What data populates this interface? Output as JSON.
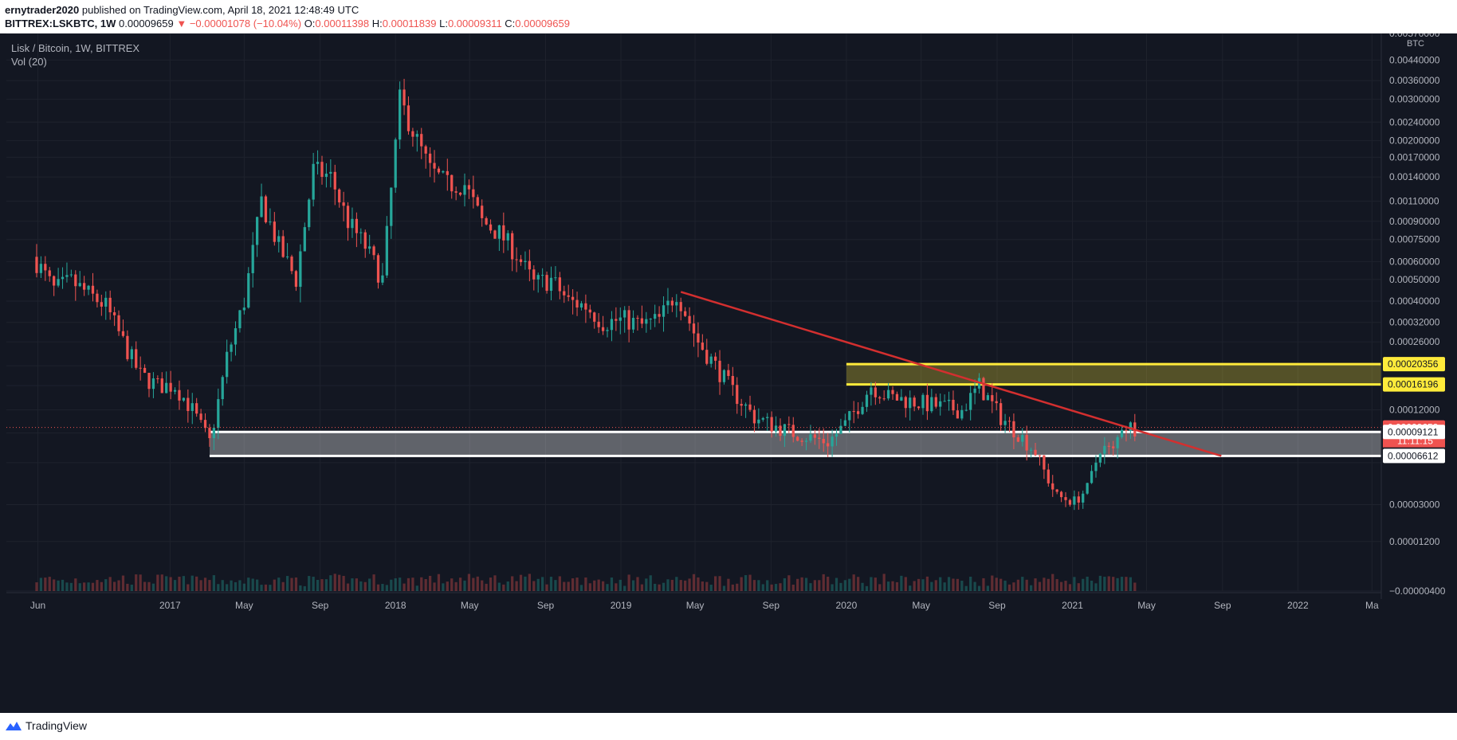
{
  "header": {
    "author": "ernytrader2020",
    "published_text": "published on TradingView.com, April 18, 2021 12:48:49 UTC",
    "symbol": "BITTREX:LSKBTC, 1W",
    "price": "0.00009659",
    "change": "−0.00001078 (−10.04%)",
    "o_label": "O:",
    "o_value": "0.00011398",
    "h_label": "H:",
    "h_value": "0.00011839",
    "l_label": "L:",
    "l_value": "0.00009311",
    "c_label": "C:",
    "c_value": "0.00009659"
  },
  "legend": {
    "title": "Lisk / Bitcoin, 1W, BITTREX",
    "vol": "Vol (20)"
  },
  "footer": {
    "brand": "TradingView"
  },
  "colors": {
    "background": "#131722",
    "up": "#26a69a",
    "down": "#ef5350",
    "trendline": "#d32f2f",
    "resistance_zone": "#ffeb3b",
    "support_zone": "#ffffff"
  },
  "chart_data": {
    "type": "candlestick",
    "scale": "log",
    "currency": "BTC",
    "x_tick_labels": [
      "Jun",
      "2017",
      "May",
      "Sep",
      "2018",
      "May",
      "Sep",
      "2019",
      "May",
      "Sep",
      "2020",
      "May",
      "Sep",
      "2021",
      "May",
      "Sep",
      "2022",
      "Ma"
    ],
    "x_tick_dates": [
      "2016-06-01",
      "2017-01-01",
      "2017-05-01",
      "2017-09-01",
      "2018-01-01",
      "2018-05-01",
      "2018-09-01",
      "2019-01-01",
      "2019-05-01",
      "2019-09-01",
      "2020-01-01",
      "2020-05-01",
      "2020-09-01",
      "2021-01-01",
      "2021-05-01",
      "2021-09-01",
      "2022-01-01",
      "2022-05-01"
    ],
    "y_tick_values": [
      0.0057,
      0.0044,
      0.0036,
      0.003,
      0.0024,
      0.002,
      0.0017,
      0.0014,
      0.0011,
      0.0009,
      0.00075,
      0.0006,
      0.0005,
      0.0004,
      0.00032,
      0.00026,
      0.0002,
      0.00016,
      0.00012,
      9e-05,
      6e-05,
      3e-05,
      1.2e-05,
      -4e-06
    ],
    "y_tick_labels": [
      "0.00570000",
      "0.00440000",
      "0.00360000",
      "0.00300000",
      "0.00240000",
      "0.00200000",
      "0.00170000",
      "0.00140000",
      "0.00110000",
      "0.00090000",
      "0.00075000",
      "0.00060000",
      "0.00050000",
      "0.00040000",
      "0.00032000",
      "0.00026000",
      "",
      "",
      "0.00012000",
      "",
      "",
      "0.00003000",
      "0.00001200",
      "−0.00000400"
    ],
    "weekly_close": [
      {
        "date": "2016-05-30",
        "close": 0.0006
      },
      {
        "date": "2016-06-27",
        "close": 0.00045
      },
      {
        "date": "2016-07-25",
        "close": 0.00049
      },
      {
        "date": "2016-08-22",
        "close": 0.00043
      },
      {
        "date": "2016-09-19",
        "close": 0.00038
      },
      {
        "date": "2016-10-17",
        "close": 0.00026
      },
      {
        "date": "2016-11-14",
        "close": 0.00018
      },
      {
        "date": "2016-12-12",
        "close": 0.00016
      },
      {
        "date": "2017-01-09",
        "close": 0.00016
      },
      {
        "date": "2017-02-06",
        "close": 0.00012
      },
      {
        "date": "2017-03-06",
        "close": 8e-05
      },
      {
        "date": "2017-04-03",
        "close": 0.00022
      },
      {
        "date": "2017-05-01",
        "close": 0.0004
      },
      {
        "date": "2017-05-29",
        "close": 0.0011
      },
      {
        "date": "2017-06-26",
        "close": 0.0007
      },
      {
        "date": "2017-07-24",
        "close": 0.0005
      },
      {
        "date": "2017-08-21",
        "close": 0.0015
      },
      {
        "date": "2017-09-18",
        "close": 0.0014
      },
      {
        "date": "2017-10-16",
        "close": 0.0009
      },
      {
        "date": "2017-11-13",
        "close": 0.0007
      },
      {
        "date": "2017-12-11",
        "close": 0.0005
      },
      {
        "date": "2018-01-08",
        "close": 0.003
      },
      {
        "date": "2018-01-29",
        "close": 0.0022
      },
      {
        "date": "2018-02-26",
        "close": 0.0015
      },
      {
        "date": "2018-03-26",
        "close": 0.0013
      },
      {
        "date": "2018-04-23",
        "close": 0.0013
      },
      {
        "date": "2018-05-21",
        "close": 0.0009
      },
      {
        "date": "2018-06-18",
        "close": 0.0008
      },
      {
        "date": "2018-07-16",
        "close": 0.00065
      },
      {
        "date": "2018-08-13",
        "close": 0.00048
      },
      {
        "date": "2018-09-10",
        "close": 0.0005
      },
      {
        "date": "2018-10-08",
        "close": 0.0004
      },
      {
        "date": "2018-11-05",
        "close": 0.00038
      },
      {
        "date": "2018-12-03",
        "close": 0.00032
      },
      {
        "date": "2019-01-07",
        "close": 0.00033
      },
      {
        "date": "2019-02-04",
        "close": 0.00031
      },
      {
        "date": "2019-03-04",
        "close": 0.00033
      },
      {
        "date": "2019-04-01",
        "close": 0.00044
      },
      {
        "date": "2019-05-06",
        "close": 0.00026
      },
      {
        "date": "2019-06-03",
        "close": 0.0002
      },
      {
        "date": "2019-07-01",
        "close": 0.00015
      },
      {
        "date": "2019-08-05",
        "close": 0.00011
      },
      {
        "date": "2019-09-02",
        "close": 0.0001
      },
      {
        "date": "2019-10-07",
        "close": 9e-05
      },
      {
        "date": "2019-11-04",
        "close": 8.5e-05
      },
      {
        "date": "2019-12-02",
        "close": 8e-05
      },
      {
        "date": "2019-12-30",
        "close": 0.0001
      },
      {
        "date": "2020-02-10",
        "close": 0.00016
      },
      {
        "date": "2020-03-09",
        "close": 0.00014
      },
      {
        "date": "2020-04-06",
        "close": 0.000135
      },
      {
        "date": "2020-05-04",
        "close": 0.00013
      },
      {
        "date": "2020-06-01",
        "close": 0.000125
      },
      {
        "date": "2020-07-06",
        "close": 0.00012
      },
      {
        "date": "2020-08-03",
        "close": 0.00016
      },
      {
        "date": "2020-09-07",
        "close": 0.00011
      },
      {
        "date": "2020-10-05",
        "close": 9e-05
      },
      {
        "date": "2020-11-02",
        "close": 7e-05
      },
      {
        "date": "2020-12-07",
        "close": 3.5e-05
      },
      {
        "date": "2021-01-04",
        "close": 3.2e-05
      },
      {
        "date": "2021-01-25",
        "close": 4e-05
      },
      {
        "date": "2021-02-15",
        "close": 7.5e-05
      },
      {
        "date": "2021-03-08",
        "close": 7e-05
      },
      {
        "date": "2021-03-22",
        "close": 0.0001
      },
      {
        "date": "2021-04-12",
        "close": 9.659e-05
      }
    ],
    "trendline": {
      "start": {
        "date": "2019-04-08",
        "price": 0.00044
      },
      "end": {
        "date": "2021-08-30",
        "price": 6.612e-05
      }
    },
    "zones": [
      {
        "name": "resistance",
        "from_date": "2020-01-01",
        "top": 0.00020356,
        "bottom": 0.00016196
      },
      {
        "name": "support",
        "from_date": "2017-03-06",
        "top": 9.121e-05,
        "bottom": 6.612e-05
      }
    ],
    "price_labels": [
      {
        "value": 0.00020356,
        "label": "0.00020356",
        "bg": "#ffeb3b",
        "fg": "#131722"
      },
      {
        "value": 0.00016196,
        "label": "0.00016196",
        "bg": "#ffeb3b",
        "fg": "#131722"
      },
      {
        "value": 9.659e-05,
        "label": "0.00009659",
        "bg": "#ef5350",
        "fg": "#ffffff"
      },
      {
        "value": 9.121e-05,
        "label": "0.00009121",
        "bg": "#ffffff",
        "fg": "#131722"
      },
      {
        "value": 6.612e-05,
        "label": "0.00006612",
        "bg": "#ffffff",
        "fg": "#131722"
      }
    ],
    "countdown": "11:11:15",
    "ylim": [
      -4e-06,
      0.0057
    ],
    "xlim": [
      "2016-04-11",
      "2022-05-16"
    ],
    "grid": true,
    "legend_position": "top-left"
  }
}
